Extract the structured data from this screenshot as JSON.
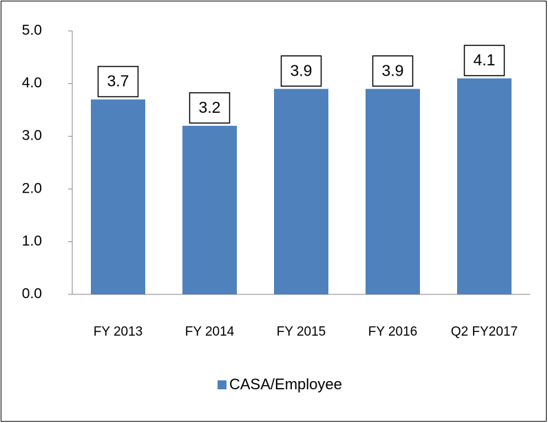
{
  "chart_data": {
    "type": "bar",
    "categories": [
      "FY 2013",
      "FY 2014",
      "FY 2015",
      "FY 2016",
      "Q2 FY2017"
    ],
    "series": [
      {
        "name": "CASA/Employee",
        "color": "#4f81bd",
        "values": [
          3.7,
          3.2,
          3.9,
          3.9,
          4.1
        ]
      }
    ],
    "ylim": [
      0,
      5
    ],
    "yticks": [
      {
        "value": 0,
        "label": "0.0"
      },
      {
        "value": 1,
        "label": "1.0"
      },
      {
        "value": 2,
        "label": "2.0"
      },
      {
        "value": 3,
        "label": "3.0"
      },
      {
        "value": 4,
        "label": "4.0"
      },
      {
        "value": 5,
        "label": "5.0"
      }
    ],
    "legend": "bottom"
  }
}
